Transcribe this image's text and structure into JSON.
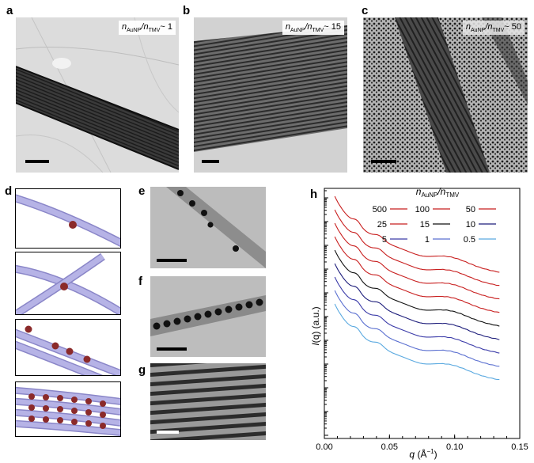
{
  "panels": {
    "a": {
      "letter": "a",
      "ratio_prefix": "n",
      "ratio_sub1": "AuNP",
      "ratio_mid": "/n",
      "ratio_sub2": "TMV",
      "ratio_value": "~ 1"
    },
    "b": {
      "letter": "b",
      "ratio_prefix": "n",
      "ratio_sub1": "AuNP",
      "ratio_mid": "/n",
      "ratio_sub2": "TMV",
      "ratio_value": "~ 15"
    },
    "c": {
      "letter": "c",
      "ratio_prefix": "n",
      "ratio_sub1": "AuNP",
      "ratio_mid": "/n",
      "ratio_sub2": "TMV",
      "ratio_value": "~ 50"
    },
    "d": {
      "letter": "d"
    },
    "e": {
      "letter": "e"
    },
    "f": {
      "letter": "f"
    },
    "g": {
      "letter": "g"
    },
    "h": {
      "letter": "h"
    }
  },
  "colors": {
    "rod": "#a9a6de",
    "rod_edge": "#8a86c8",
    "particle": "#8b2a2a",
    "scalebar_dark": "#000000",
    "scalebar_light": "#ffffff"
  },
  "chart_data": {
    "type": "line",
    "xlabel_prefix": "q",
    "xlabel_unit": " (Å",
    "xlabel_exp": "−1",
    "xlabel_close": ")",
    "ylabel_prefix": "I",
    "ylabel_rest": "(q) (a.u.)",
    "xlim": [
      0.0,
      0.15
    ],
    "x_ticks": [
      "0.00",
      "0.05",
      "0.10",
      "0.15"
    ],
    "y_scale": "log",
    "legend_title_prefix": "n",
    "legend_title_sub1": "AuNP",
    "legend_title_mid": "/n",
    "legend_title_sub2": "TMV",
    "legend_placement": "top-right",
    "series": [
      {
        "name": "500",
        "color": "#c81e1e",
        "peak1": 0.025,
        "peak2": 0.042,
        "broad": 0.098,
        "offset": 0
      },
      {
        "name": "100",
        "color": "#c81e1e",
        "peak1": 0.025,
        "peak2": 0.042,
        "broad": 0.098,
        "offset": 1
      },
      {
        "name": "50",
        "color": "#c81e1e",
        "peak1": 0.025,
        "peak2": 0.042,
        "broad": 0.098,
        "offset": 2
      },
      {
        "name": "25",
        "color": "#c81e1e",
        "peak1": 0.025,
        "peak2": 0.042,
        "broad": 0.098,
        "offset": 3
      },
      {
        "name": "15",
        "color": "#111111",
        "peak1": 0.025,
        "peak2": 0.042,
        "broad": 0.098,
        "offset": 4
      },
      {
        "name": "10",
        "color": "#1c1c7a",
        "peak1": 0.025,
        "peak2": 0.042,
        "broad": 0.098,
        "offset": 5
      },
      {
        "name": "5",
        "color": "#3a3aa8",
        "peak1": 0.025,
        "peak2": 0.042,
        "broad": 0.098,
        "offset": 6
      },
      {
        "name": "1",
        "color": "#5a6fd0",
        "peak1": 0.025,
        "peak2": 0.042,
        "broad": 0.098,
        "offset": 7
      },
      {
        "name": "0.5",
        "color": "#5aa9e0",
        "peak1": 0.025,
        "peak2": 0.042,
        "broad": 0.098,
        "offset": 8
      }
    ]
  }
}
